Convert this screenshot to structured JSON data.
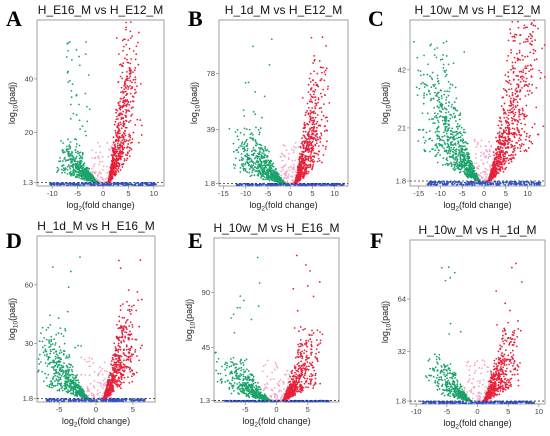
{
  "colors": {
    "up": "#e8203a",
    "down": "#1aa36b",
    "ns": "#2f52c8",
    "pink": "#f3a6c6",
    "threshold": "#333333"
  },
  "chart_data": [
    {
      "type": "scatter",
      "letter": "A",
      "title": "H_E16_M vs H_E12_M",
      "xlabel": "log2(fold change)",
      "ylabel": "log10(padj)",
      "xticks": [
        -10,
        -5,
        0,
        5,
        10
      ],
      "yticks": [
        1.3,
        20,
        40
      ],
      "xlim": [
        -13,
        12
      ],
      "ylim": [
        0,
        62
      ],
      "threshold": 1.3,
      "shape": {
        "dense_left": -5.5,
        "dense_right": 6,
        "down_max": 12,
        "up_max": 45,
        "down_n": 650,
        "up_n": 680,
        "scatter_n": 60
      }
    },
    {
      "type": "scatter",
      "letter": "B",
      "title": "H_1d_M vs H_E12_M",
      "xlabel": "log2(fold change)",
      "ylabel": "log10(padj)",
      "xticks": [
        -15,
        -10,
        -5,
        0,
        5,
        10
      ],
      "yticks": [
        1.8,
        39,
        78
      ],
      "xlim": [
        -16,
        13
      ],
      "ylim": [
        0,
        115
      ],
      "threshold": 1.8,
      "shape": {
        "dense_left": -9,
        "dense_right": 7,
        "down_max": 30,
        "up_max": 60,
        "down_n": 750,
        "up_n": 700,
        "scatter_n": 40
      }
    },
    {
      "type": "scatter",
      "letter": "C",
      "title": "H_10w_M vs H_E12_M",
      "xlabel": "log2(fold change)",
      "ylabel": "log10(padj)",
      "xticks": [
        -15,
        -10,
        -5,
        0,
        5,
        10
      ],
      "yticks": [
        1.8,
        21,
        42
      ],
      "xlim": [
        -17,
        14
      ],
      "ylim": [
        0,
        60
      ],
      "threshold": 1.8,
      "shape": {
        "dense_left": -11,
        "dense_right": 11,
        "down_max": 38,
        "up_max": 50,
        "down_n": 900,
        "up_n": 850,
        "scatter_n": 40
      }
    },
    {
      "type": "scatter",
      "letter": "D",
      "title": "H_1d_M vs H_E16_M",
      "xlabel": "log2(fold change)",
      "ylabel": "log10(padj)",
      "xticks": [
        -5,
        0,
        5
      ],
      "yticks": [
        1.8,
        30,
        60
      ],
      "xlim": [
        -8,
        8
      ],
      "ylim": [
        0,
        85
      ],
      "threshold": 1.8,
      "shape": {
        "dense_left": -5,
        "dense_right": 5,
        "down_max": 28,
        "up_max": 38,
        "down_n": 650,
        "up_n": 650,
        "scatter_n": 25
      }
    },
    {
      "type": "scatter",
      "letter": "E",
      "title": "H_10w_M vs H_E16_M",
      "xlabel": "log2(fold change)",
      "ylabel": "log10(padj)",
      "xticks": [
        -5,
        0,
        5
      ],
      "yticks": [
        1.3,
        45,
        90
      ],
      "xlim": [
        -10,
        10
      ],
      "ylim": [
        0,
        135
      ],
      "threshold": 1.3,
      "shape": {
        "dense_left": -6,
        "dense_right": 6,
        "down_max": 30,
        "up_max": 45,
        "down_n": 550,
        "up_n": 600,
        "scatter_n": 25
      }
    },
    {
      "type": "scatter",
      "letter": "F",
      "title": "H_10w_M vs H_1d_M",
      "xlabel": "log2(fold change)",
      "ylabel": "log10(padj)",
      "xticks": [
        -10,
        -5,
        0,
        5,
        10
      ],
      "yticks": [
        1.8,
        32,
        64
      ],
      "xlim": [
        -11,
        11
      ],
      "ylim": [
        0,
        100
      ],
      "threshold": 1.8,
      "shape": {
        "dense_left": -5,
        "dense_right": 6,
        "down_max": 22,
        "up_max": 35,
        "down_n": 500,
        "up_n": 550,
        "scatter_n": 15
      }
    }
  ]
}
